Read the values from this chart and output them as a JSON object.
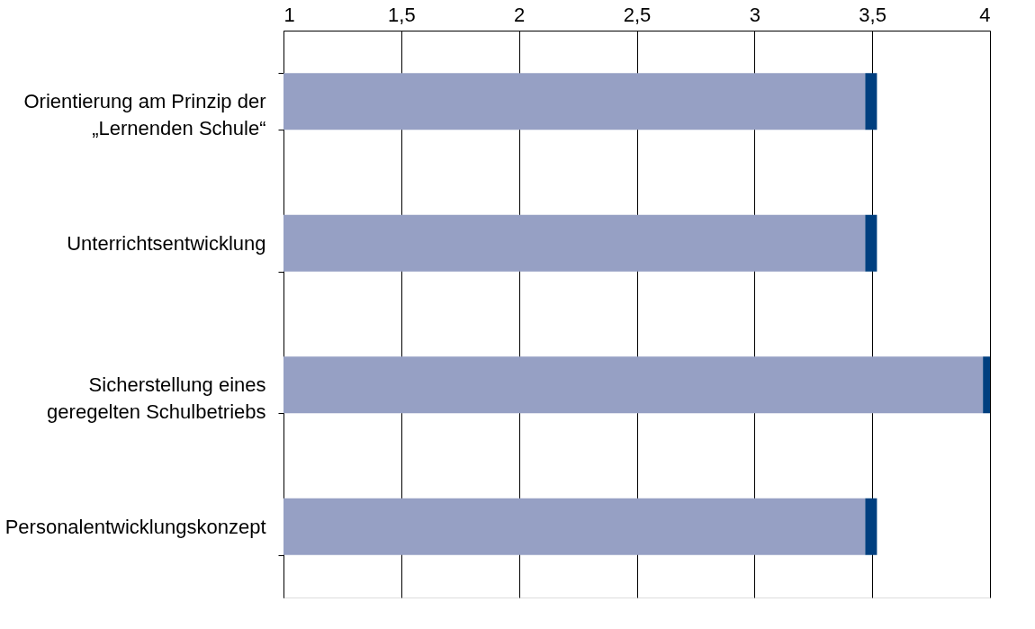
{
  "chart_data": {
    "type": "bar",
    "orientation": "horizontal",
    "categories": [
      "Orientierung am Prinzip der\n„Lernenden Schule“",
      "Unterrichtsentwicklung",
      "Sicherstellung eines\ngeregelten Schulbetriebs",
      "Personalentwicklungskonzept"
    ],
    "series": [
      {
        "color": "#96a0c4",
        "base": [
          1,
          1,
          1,
          1
        ],
        "values": [
          2.47,
          2.47,
          2.97,
          2.47
        ]
      },
      {
        "color": "#003f7f",
        "base": [
          3.47,
          3.47,
          3.97,
          3.47
        ],
        "values": [
          0.05,
          0.05,
          0.03,
          0.05
        ]
      }
    ],
    "xlim": [
      1,
      4
    ],
    "xticks": [
      1,
      {
        "value": 1.5,
        "label": "1,5"
      },
      2,
      {
        "value": 2.5,
        "label": "2,5"
      },
      3,
      {
        "value": 3.5,
        "label": "3,5"
      },
      4
    ],
    "grid": "x"
  }
}
